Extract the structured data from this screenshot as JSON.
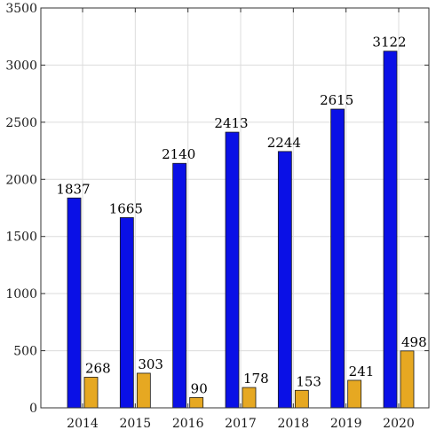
{
  "chart_data": {
    "type": "bar",
    "categories": [
      "2014",
      "2015",
      "2016",
      "2017",
      "2018",
      "2019",
      "2020"
    ],
    "series": [
      {
        "values": [
          1837,
          1665,
          2140,
          2413,
          2244,
          2615,
          3122
        ],
        "color": "#0a10e6"
      },
      {
        "values": [
          268,
          303,
          90,
          178,
          153,
          241,
          498
        ],
        "color": "#e6a822"
      }
    ],
    "yticks": [
      "0",
      "500",
      "1000",
      "1500",
      "2000",
      "2500",
      "3000",
      "3500"
    ],
    "ylim": [
      0,
      3500
    ],
    "grid": true,
    "title": "",
    "xlabel": "",
    "ylabel": ""
  }
}
